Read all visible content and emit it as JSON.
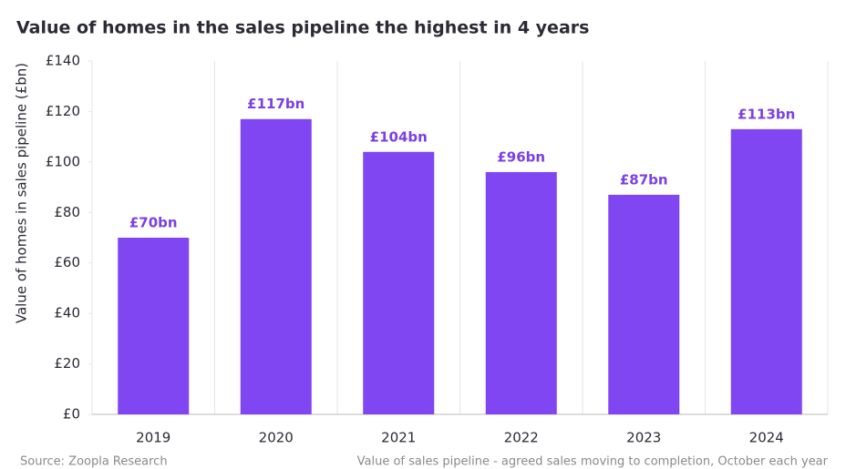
{
  "chart_data": {
    "type": "bar",
    "title": "Value of homes in the sales pipeline the highest in 4 years",
    "y_label": "Value of homes in sales pipeline (£bn)",
    "source": "Source: Zoopla Research",
    "note": "Value of sales pipeline - agreed sales moving to completion, October each year",
    "categories": [
      "2019",
      "2020",
      "2021",
      "2022",
      "2023",
      "2024"
    ],
    "values": [
      70,
      117,
      104,
      96,
      87,
      113
    ],
    "value_labels": [
      "£70bn",
      "£117bn",
      "£104bn",
      "£96bn",
      "£87bn",
      "£113bn"
    ],
    "color": "#8046f1",
    "label_color": "#7b3fe4",
    "ylim": [
      0,
      140
    ],
    "yticks": [
      {
        "value": 0,
        "label": "£0"
      },
      {
        "value": 20,
        "label": "£20"
      },
      {
        "value": 40,
        "label": "£40"
      },
      {
        "value": 60,
        "label": "£60"
      },
      {
        "value": 80,
        "label": "£80"
      },
      {
        "value": 100,
        "label": "£100"
      },
      {
        "value": 120,
        "label": "£120"
      },
      {
        "value": 140,
        "label": "£140"
      }
    ],
    "grid": true
  }
}
